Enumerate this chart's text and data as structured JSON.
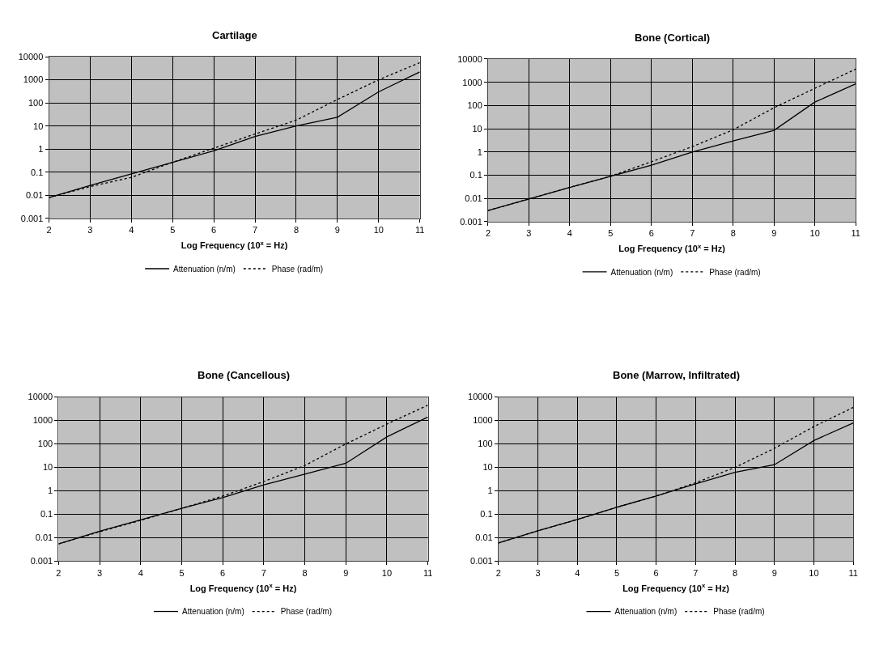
{
  "chart_data": [
    {
      "type": "line",
      "title": "Cartilage",
      "xlabel": "Log Frequency (10$^{x}$ = Hz)",
      "x": [
        2,
        3,
        4,
        5,
        6,
        7,
        8,
        9,
        10,
        11
      ],
      "xlim": [
        2,
        11
      ],
      "xticks": [
        2,
        3,
        4,
        5,
        6,
        7,
        8,
        9,
        10,
        11
      ],
      "ylim": [
        0.001,
        10000
      ],
      "yticks": [
        0.001,
        0.01,
        0.1,
        1,
        10,
        100,
        1000,
        10000
      ],
      "log": "y",
      "grid": true,
      "legend": "bottom",
      "series": [
        {
          "name": "Attenuation (n/m)",
          "color": "#000000",
          "line_style": "solid",
          "values": [
            0.008,
            0.027,
            0.085,
            0.27,
            0.85,
            3.5,
            10,
            24,
            300,
            2200
          ]
        },
        {
          "name": "Phase (rad/m)",
          "color": "#000000",
          "line_style": "dotted",
          "values": [
            0.008,
            0.024,
            0.06,
            0.27,
            1.1,
            4.5,
            18,
            140,
            1000,
            5500
          ]
        }
      ]
    },
    {
      "type": "line",
      "title": "Bone (Cortical)",
      "xlabel": "Log Frequency (10$^{x}$ = Hz)",
      "x": [
        2,
        3,
        4,
        5,
        6,
        7,
        8,
        9,
        10,
        11
      ],
      "xlim": [
        2,
        11
      ],
      "xticks": [
        2,
        3,
        4,
        5,
        6,
        7,
        8,
        9,
        10,
        11
      ],
      "ylim": [
        0.001,
        10000
      ],
      "yticks": [
        0.001,
        0.01,
        0.1,
        1,
        10,
        100,
        1000,
        10000
      ],
      "log": "y",
      "grid": true,
      "legend": "bottom",
      "series": [
        {
          "name": "Attenuation (n/m)",
          "color": "#000000",
          "line_style": "solid",
          "values": [
            0.003,
            0.0095,
            0.03,
            0.09,
            0.27,
            1.0,
            3,
            8.5,
            140,
            850
          ]
        },
        {
          "name": "Phase (rad/m)",
          "color": "#000000",
          "line_style": "dotted",
          "values": [
            0.003,
            0.0095,
            0.03,
            0.09,
            0.38,
            1.7,
            9,
            80,
            550,
            3700
          ]
        }
      ]
    },
    {
      "type": "line",
      "title": "Bone (Cancellous)",
      "xlabel": "Log Frequency (10$^{x}$ = Hz)",
      "x": [
        2,
        3,
        4,
        5,
        6,
        7,
        8,
        9,
        10,
        11
      ],
      "xlim": [
        2,
        11
      ],
      "xticks": [
        2,
        3,
        4,
        5,
        6,
        7,
        8,
        9,
        10,
        11
      ],
      "ylim": [
        0.001,
        10000
      ],
      "yticks": [
        0.001,
        0.01,
        0.1,
        1,
        10,
        100,
        1000,
        10000
      ],
      "log": "y",
      "grid": true,
      "legend": "bottom",
      "series": [
        {
          "name": "Attenuation (n/m)",
          "color": "#000000",
          "line_style": "solid",
          "values": [
            0.0055,
            0.019,
            0.058,
            0.18,
            0.52,
            1.8,
            5.2,
            15,
            200,
            1400
          ]
        },
        {
          "name": "Phase (rad/m)",
          "color": "#000000",
          "line_style": "dotted",
          "values": [
            0.0055,
            0.018,
            0.055,
            0.18,
            0.6,
            2.5,
            12,
            100,
            700,
            4500
          ]
        }
      ]
    },
    {
      "type": "line",
      "title": "Bone (Marrow, Infiltrated)",
      "xlabel": "Log Frequency (10$^{x}$ = Hz)",
      "x": [
        2,
        3,
        4,
        5,
        6,
        7,
        8,
        9,
        10,
        11
      ],
      "xlim": [
        2,
        11
      ],
      "xticks": [
        2,
        3,
        4,
        5,
        6,
        7,
        8,
        9,
        10,
        11
      ],
      "ylim": [
        0.001,
        10000
      ],
      "yticks": [
        0.001,
        0.01,
        0.1,
        1,
        10,
        100,
        1000,
        10000
      ],
      "log": "y",
      "grid": true,
      "legend": "bottom",
      "series": [
        {
          "name": "Attenuation (n/m)",
          "color": "#000000",
          "line_style": "solid",
          "values": [
            0.006,
            0.02,
            0.06,
            0.2,
            0.6,
            2.0,
            6.2,
            13,
            140,
            780
          ]
        },
        {
          "name": "Phase (rad/m)",
          "color": "#000000",
          "line_style": "dotted",
          "values": [
            0.006,
            0.02,
            0.06,
            0.2,
            0.6,
            2.2,
            10,
            65,
            550,
            3600
          ]
        }
      ]
    }
  ]
}
